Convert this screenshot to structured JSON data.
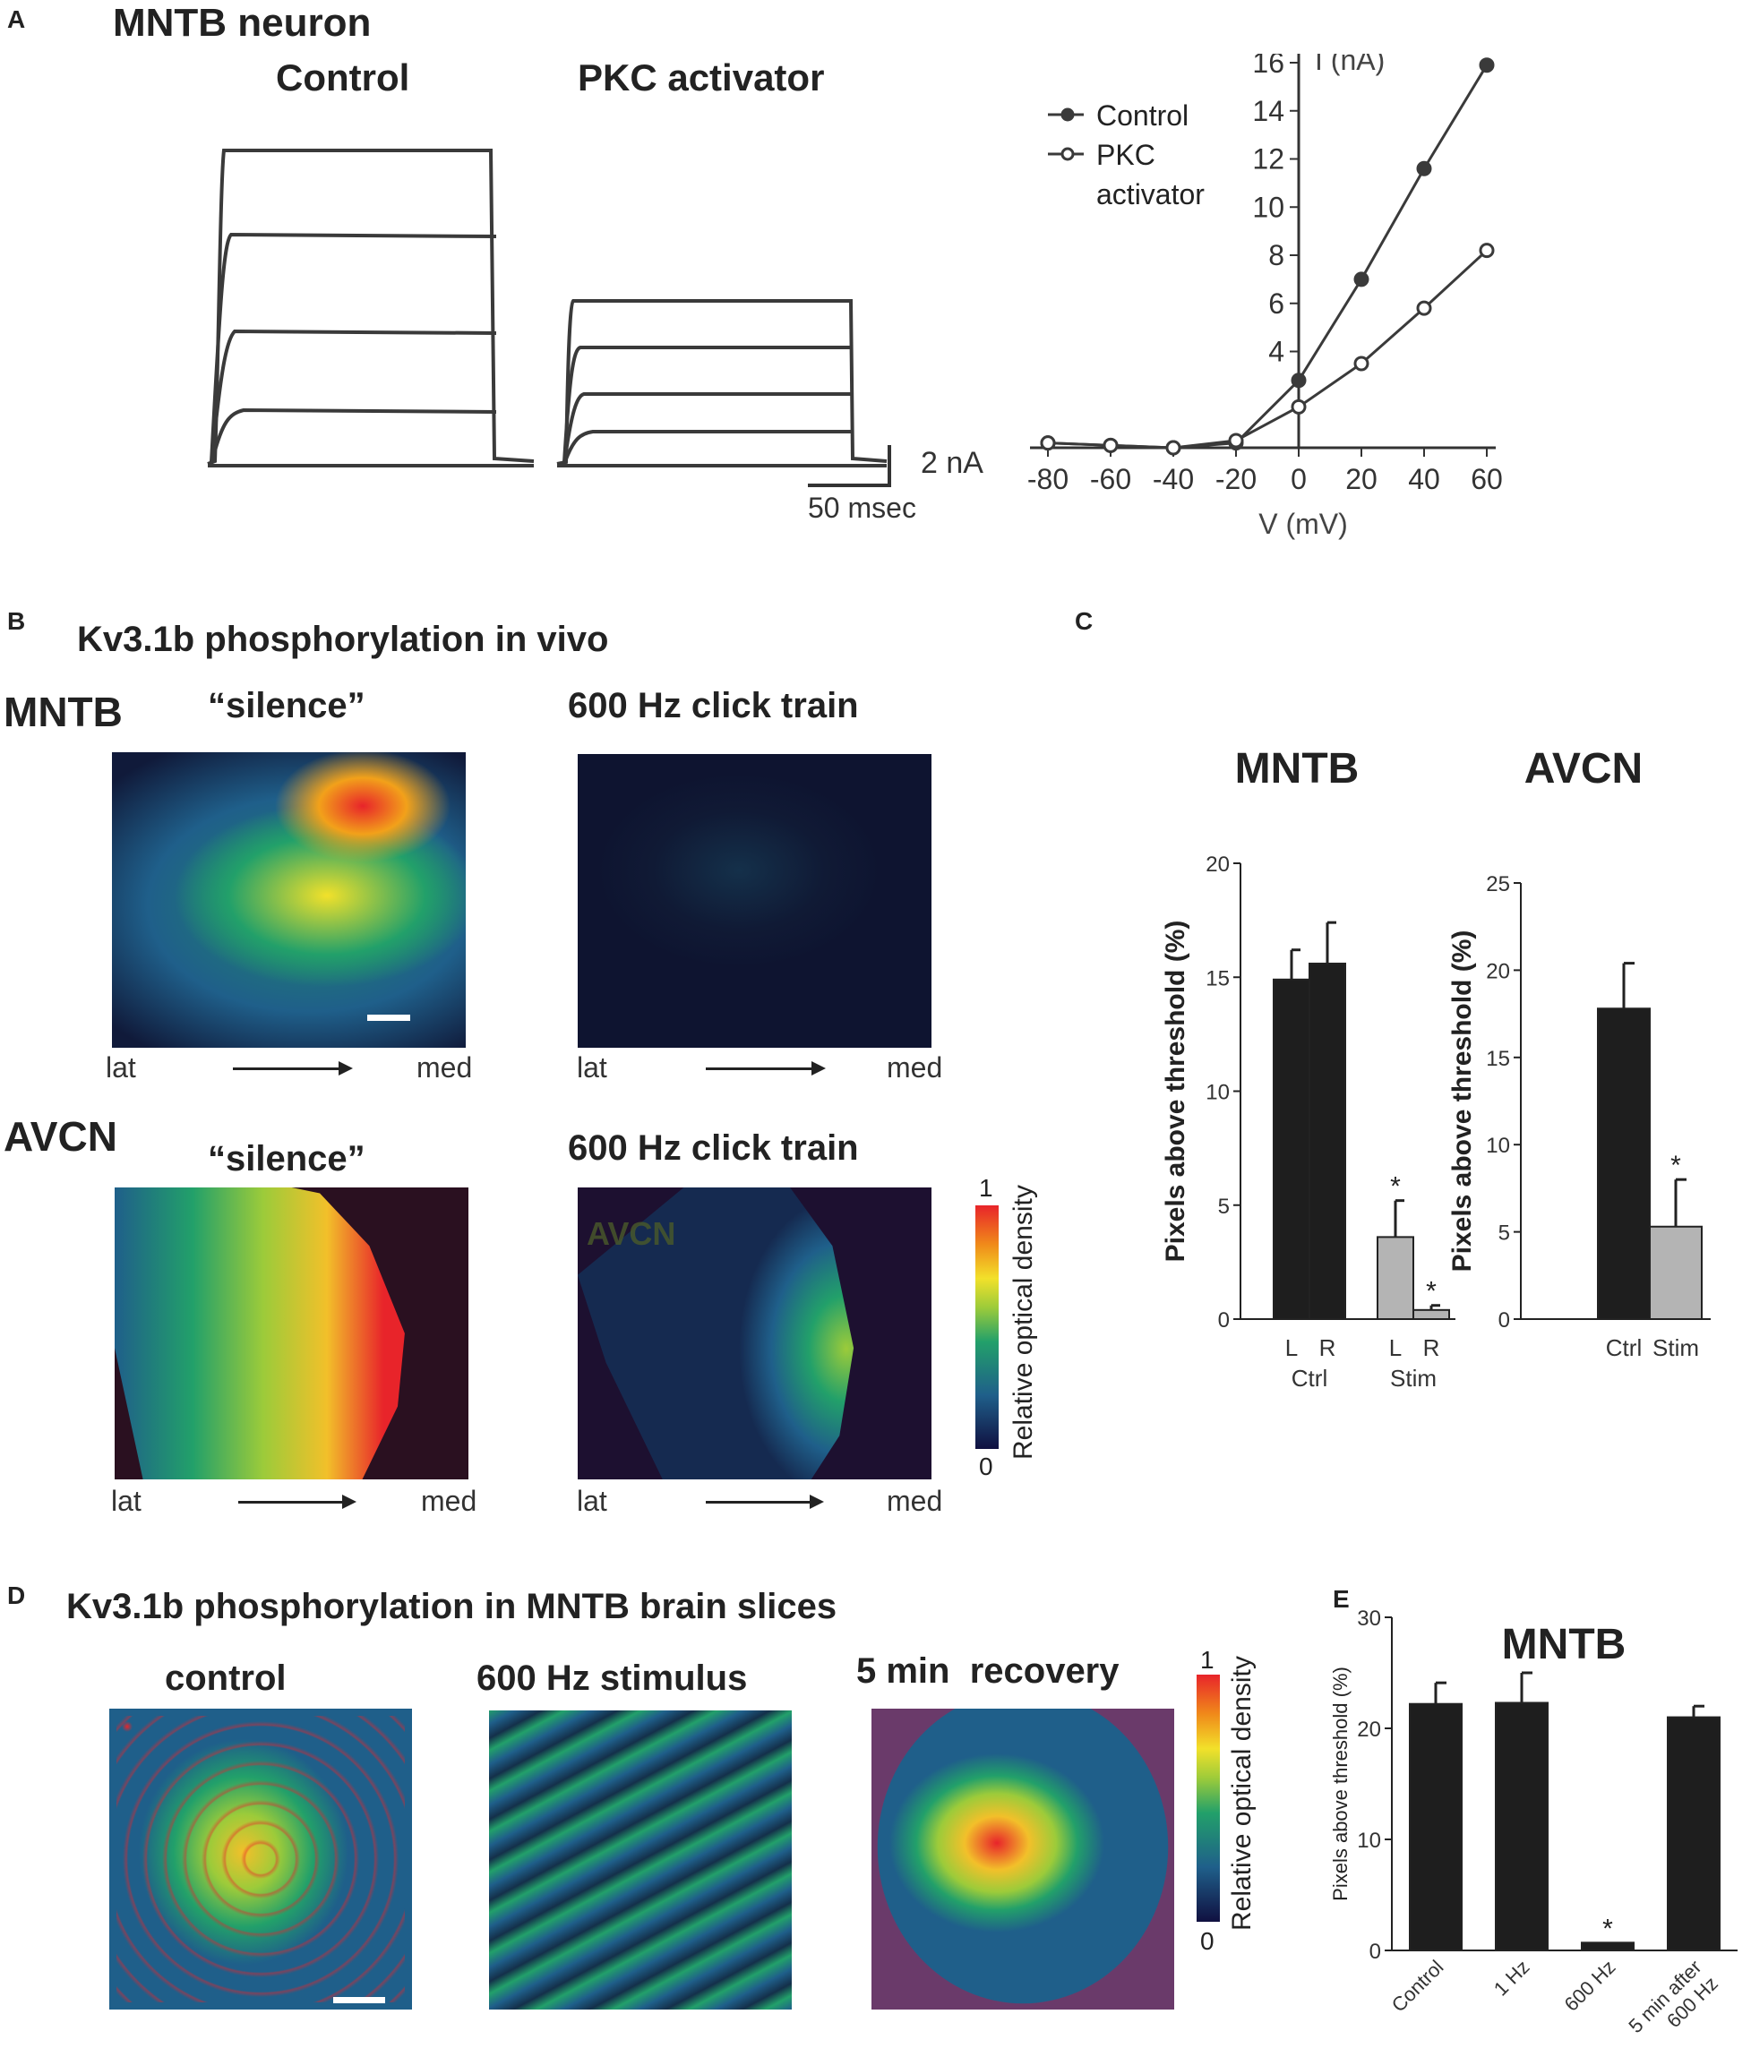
{
  "panels": {
    "A": {
      "letter": "A",
      "title": "MNTB neuron",
      "trace_labels": [
        "Control",
        "PKC activator"
      ],
      "scale_bar": {
        "current": "2 nA",
        "time": "50 msec"
      }
    },
    "B": {
      "letter": "B",
      "title": "Kv3.1b phosphorylation in vivo",
      "rows": [
        {
          "nucleus": "MNTB",
          "conditions": [
            "“silence”",
            "600 Hz click train"
          ]
        },
        {
          "nucleus": "AVCN",
          "conditions": [
            "“silence”",
            "600 Hz click train"
          ]
        }
      ],
      "direction": {
        "left": "lat",
        "right": "med"
      },
      "watermark": "AVCN",
      "colorbar": {
        "label": "Relative optical density",
        "max": "1",
        "min": "0"
      }
    },
    "C": {
      "letter": "C"
    },
    "D": {
      "letter": "D",
      "title": "Kv3.1b phosphorylation in MNTB brain slices",
      "conditions": [
        "control",
        "600 Hz stimulus",
        "5 min  recovery"
      ],
      "colorbar": {
        "label": "Relative optical density",
        "max": "1",
        "min": "0"
      }
    },
    "E": {
      "letter": "E"
    }
  },
  "colors": {
    "dark_bar": "#1e1e1e",
    "light_bar": "#b4b4b4",
    "trace": "#3a3a3a",
    "micro_background": "#2a1020",
    "colormap": [
      "#101040",
      "#1f5f8a",
      "#22a06a",
      "#9ccb3a",
      "#f2e12a",
      "#f08a1a",
      "#e8242a"
    ]
  },
  "chart_data": [
    {
      "id": "A-iv",
      "type": "line",
      "xlabel": "V (mV)",
      "ylabel": "I (nA)",
      "xlim": [
        -80,
        60
      ],
      "ylim": [
        0,
        16
      ],
      "x_ticks": [
        "-80",
        "-60",
        "-40",
        "-20",
        "0",
        "20",
        "40",
        "60"
      ],
      "y_ticks": [
        "4",
        "6",
        "8",
        "10",
        "12",
        "14",
        "16"
      ],
      "legend_position": "top-left",
      "series": [
        {
          "name": "Control",
          "marker": "filled",
          "x": [
            -80,
            -60,
            -40,
            -20,
            0,
            20,
            40,
            60
          ],
          "y": [
            0.2,
            0.1,
            0.0,
            0.2,
            2.8,
            7.0,
            11.6,
            15.9
          ]
        },
        {
          "name": "PKC activator",
          "marker": "open",
          "x": [
            -80,
            -60,
            -40,
            -20,
            0,
            20,
            40,
            60
          ],
          "y": [
            0.2,
            0.1,
            0.0,
            0.3,
            1.7,
            3.5,
            5.8,
            8.2
          ]
        }
      ]
    },
    {
      "id": "C-mntb",
      "type": "bar",
      "title": "MNTB",
      "ylabel": "Pixels above threshold (%)",
      "ylim": [
        0,
        20
      ],
      "y_ticks": [
        "0",
        "5",
        "10",
        "15",
        "20"
      ],
      "bar_labels": [
        "L",
        "R",
        "L",
        "R"
      ],
      "group_labels": [
        "Ctrl",
        "Stim"
      ],
      "values": [
        14.9,
        15.6,
        3.6,
        0.4
      ],
      "errors": [
        1.3,
        1.8,
        1.6,
        0.2
      ],
      "significant": [
        false,
        false,
        true,
        true
      ],
      "shade": [
        "dark",
        "dark",
        "light",
        "light"
      ],
      "sig_marker": "*"
    },
    {
      "id": "C-avcn",
      "type": "bar",
      "title": "AVCN",
      "ylabel": "Pixels above threshold (%)",
      "ylim": [
        0,
        25
      ],
      "y_ticks": [
        "0",
        "5",
        "10",
        "15",
        "20",
        "25"
      ],
      "bar_labels": [
        "Ctrl",
        "Stim"
      ],
      "values": [
        17.8,
        5.3
      ],
      "errors": [
        2.6,
        2.7
      ],
      "significant": [
        false,
        true
      ],
      "shade": [
        "dark",
        "light"
      ],
      "sig_marker": "*"
    },
    {
      "id": "E-mntb",
      "type": "bar",
      "title": "MNTB",
      "ylabel": "Pixels above threshold (%)",
      "ylim": [
        0,
        30
      ],
      "y_ticks": [
        "0",
        "10",
        "20",
        "30"
      ],
      "categories": [
        "Control",
        "1 Hz",
        "600 Hz",
        "5 min after 600 Hz"
      ],
      "values": [
        22.2,
        22.3,
        0.7,
        21.0
      ],
      "errors": [
        1.9,
        2.7,
        0.0,
        1.0
      ],
      "significant": [
        false,
        false,
        true,
        false
      ],
      "sig_marker": "*"
    }
  ]
}
